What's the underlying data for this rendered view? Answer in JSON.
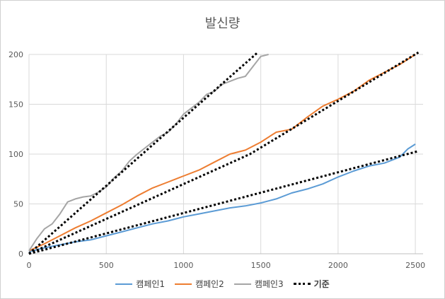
{
  "chart_data": {
    "type": "line",
    "title": "발신량",
    "xlabel": "",
    "ylabel": "",
    "xlim": [
      0,
      2550
    ],
    "ylim": [
      0,
      200
    ],
    "xticks": [
      0,
      500,
      1000,
      1500,
      2000,
      2500
    ],
    "yticks": [
      0,
      50,
      100,
      150,
      200
    ],
    "grid": true,
    "legend_position": "bottom",
    "series": [
      {
        "name": "캠페인1",
        "color": "#5b9bd5",
        "style": "solid",
        "x": [
          0,
          100,
          200,
          300,
          400,
          500,
          600,
          700,
          800,
          900,
          1000,
          1100,
          1200,
          1300,
          1400,
          1500,
          1600,
          1700,
          1800,
          1900,
          2000,
          2100,
          2200,
          2300,
          2400,
          2450,
          2500
        ],
        "y": [
          2,
          6,
          9,
          12,
          14,
          18,
          22,
          26,
          30,
          33,
          37,
          40,
          43,
          46,
          48,
          51,
          55,
          61,
          65,
          70,
          77,
          83,
          88,
          91,
          97,
          105,
          110
        ]
      },
      {
        "name": "캠페인2",
        "color": "#ed7d31",
        "style": "solid",
        "x": [
          0,
          100,
          200,
          300,
          400,
          500,
          600,
          700,
          800,
          900,
          1000,
          1100,
          1200,
          1300,
          1400,
          1500,
          1600,
          1700,
          1800,
          1900,
          2000,
          2100,
          2200,
          2300,
          2400,
          2500
        ],
        "y": [
          3,
          10,
          18,
          26,
          33,
          41,
          49,
          58,
          66,
          72,
          78,
          84,
          92,
          100,
          104,
          112,
          122,
          125,
          137,
          148,
          155,
          163,
          174,
          182,
          190,
          200
        ]
      },
      {
        "name": "캠페인3",
        "color": "#a5a5a5",
        "style": "solid",
        "x": [
          0,
          50,
          100,
          150,
          200,
          250,
          300,
          350,
          400,
          450,
          500,
          550,
          600,
          650,
          700,
          750,
          800,
          850,
          900,
          950,
          1000,
          1050,
          1100,
          1150,
          1200,
          1250,
          1300,
          1350,
          1400,
          1450,
          1500,
          1550
        ],
        "y": [
          3,
          15,
          25,
          30,
          40,
          52,
          55,
          57,
          58,
          62,
          67,
          76,
          83,
          93,
          100,
          106,
          112,
          118,
          122,
          130,
          140,
          146,
          152,
          160,
          163,
          170,
          173,
          176,
          178,
          188,
          198,
          200
        ]
      },
      {
        "name": "기준",
        "color": "#000000",
        "style": "dotted",
        "x": [
          0,
          1480
        ],
        "y": [
          0,
          202
        ]
      },
      {
        "name": "기준",
        "color": "#000000",
        "style": "dotted",
        "x": [
          0,
          1430,
          2520
        ],
        "y": [
          0,
          100,
          202
        ]
      },
      {
        "name": "기준",
        "color": "#000000",
        "style": "dotted",
        "x": [
          0,
          2520
        ],
        "y": [
          0,
          103
        ]
      }
    ],
    "legend": [
      {
        "label": "캠페인1",
        "color": "#5b9bd5",
        "style": "solid"
      },
      {
        "label": "캠페인2",
        "color": "#ed7d31",
        "style": "solid"
      },
      {
        "label": "캠페인3",
        "color": "#a5a5a5",
        "style": "solid"
      },
      {
        "label": "기준",
        "color": "#000000",
        "style": "dotted"
      }
    ]
  }
}
